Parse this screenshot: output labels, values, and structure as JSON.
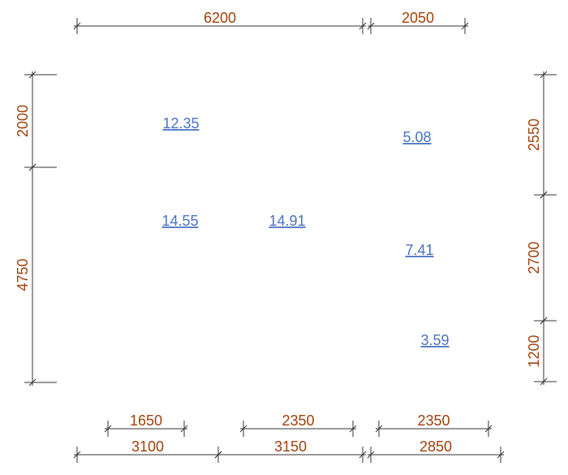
{
  "dimensions": {
    "top": [
      "6200",
      "2050"
    ],
    "left": [
      "2000",
      "4750"
    ],
    "right": [
      "2550",
      "2700",
      "1200"
    ],
    "bottom_inner": [
      "1650",
      "2350",
      "2350"
    ],
    "bottom_outer": [
      "3100",
      "3150",
      "2850"
    ]
  },
  "areas": [
    "12.35",
    "5.08",
    "14.55",
    "14.91",
    "7.41",
    "3.59"
  ]
}
